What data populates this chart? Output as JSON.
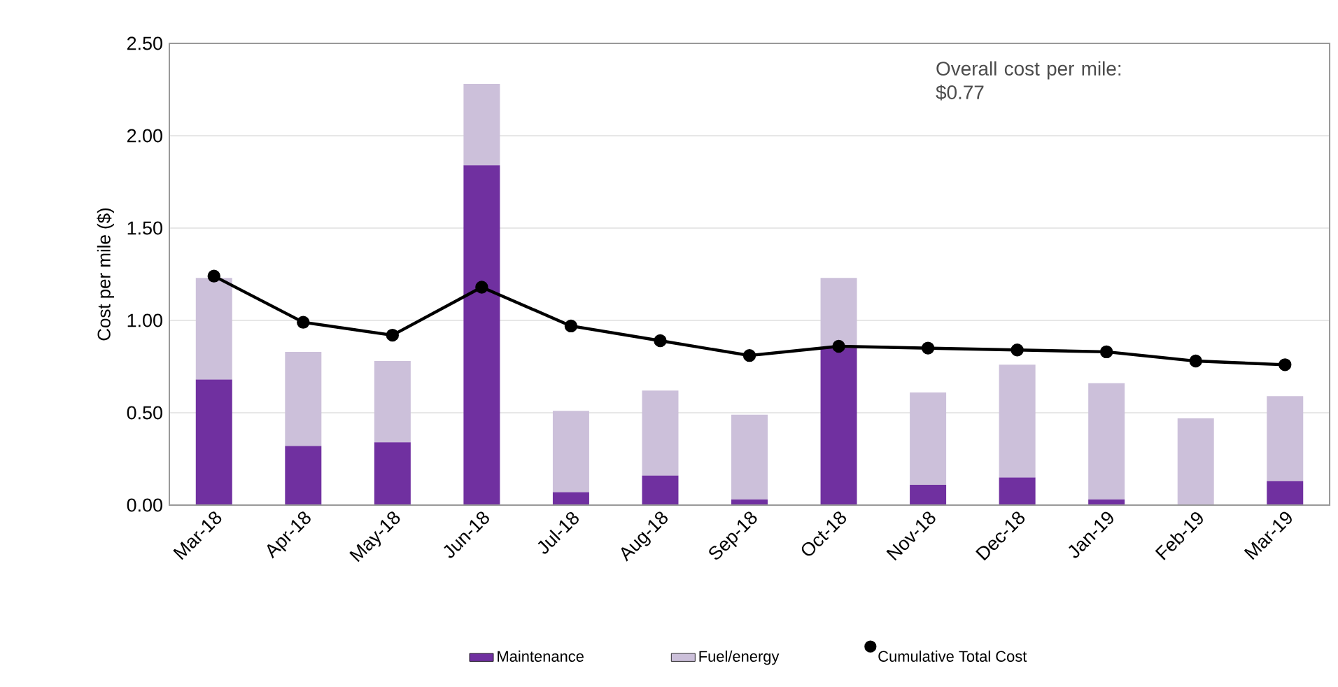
{
  "chart_data": {
    "type": "bar",
    "stacked": true,
    "ylabel": "Cost per mile ($)",
    "categories": [
      "Mar-18",
      "Apr-18",
      "May-18",
      "Jun-18",
      "Jul-18",
      "Aug-18",
      "Sep-18",
      "Oct-18",
      "Nov-18",
      "Dec-18",
      "Jan-19",
      "Feb-19",
      "Mar-19"
    ],
    "series": [
      {
        "name": "Maintenance",
        "color": "#7030a0",
        "values": [
          0.68,
          0.32,
          0.34,
          1.84,
          0.07,
          0.16,
          0.03,
          0.85,
          0.11,
          0.15,
          0.03,
          0,
          0.13
        ]
      },
      {
        "name": "Fuel/energy",
        "color": "#ccc0da",
        "values": [
          0.55,
          0.51,
          0.44,
          0.44,
          0.44,
          0.46,
          0.46,
          0.38,
          0.5,
          0.61,
          0.63,
          0.47,
          0.46
        ]
      },
      {
        "name": "Cumulative Total Cost",
        "type": "line",
        "color": "#000000",
        "marker": "circle",
        "line_style": "solid",
        "values": [
          1.24,
          0.99,
          0.92,
          1.18,
          0.97,
          0.89,
          0.81,
          0.86,
          0.85,
          0.84,
          0.83,
          0.78,
          0.76
        ]
      }
    ],
    "ylim": [
      0,
      2.5
    ],
    "yticks": [
      {
        "value": 0,
        "label": "0.00"
      },
      {
        "value": 0.5,
        "label": "0.50"
      },
      {
        "value": 1,
        "label": "1.00"
      },
      {
        "value": 1.5,
        "label": "1.50"
      },
      {
        "value": 2,
        "label": "2.00"
      },
      {
        "value": 2.5,
        "label": "2.50"
      }
    ],
    "grid": "y",
    "legend": "bottom",
    "annotations": [
      "Overall cost per mile: $0.77"
    ]
  }
}
